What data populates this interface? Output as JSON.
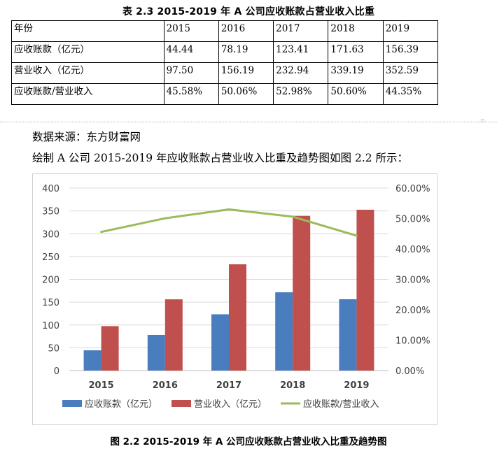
{
  "table": {
    "title": "表 2.3 2015-2019 年 A 公司应收账款占营业收入比重",
    "header": [
      "年份",
      "2015",
      "2016",
      "2017",
      "2018",
      "2019"
    ],
    "rows": [
      [
        "应收账款（亿元）",
        "44.44",
        "78.19",
        "123.41",
        "171.63",
        "156.39"
      ],
      [
        "营业收入（亿元）",
        "97.50",
        "156.19",
        "232.94",
        "339.19",
        "352.59"
      ],
      [
        "应收账款/营业收入",
        "45.58%",
        "50.06%",
        "52.98%",
        "50.60%",
        "44.35%"
      ]
    ]
  },
  "text": {
    "source": "数据来源：东方财富网",
    "description": "绘制 A 公司 2015-2019 年应收账款占营业收入比重及趋势图如图 2.2 所示：",
    "figure_caption": "图 2.2 2015-2019 年 A 公司应收账款占营业收入比重及趋势图"
  },
  "chart_data": {
    "type": "bar",
    "categories": [
      "2015",
      "2016",
      "2017",
      "2018",
      "2019"
    ],
    "series": [
      {
        "name": "应收账款（亿元）",
        "type": "bar",
        "axis": "left",
        "color": "#4a7dbe",
        "values": [
          44.44,
          78.19,
          123.41,
          171.63,
          156.39
        ]
      },
      {
        "name": "营业收入（亿元）",
        "type": "bar",
        "axis": "left",
        "color": "#c0504d",
        "values": [
          97.5,
          156.19,
          232.94,
          339.19,
          352.59
        ]
      },
      {
        "name": "应收账款/营业收入",
        "type": "line",
        "axis": "right",
        "color": "#9bbb59",
        "values": [
          45.58,
          50.06,
          52.98,
          50.6,
          44.35
        ]
      }
    ],
    "ylim": [
      0,
      400
    ],
    "y_ticks": [
      "0",
      "50",
      "100",
      "150",
      "200",
      "250",
      "300",
      "350",
      "400"
    ],
    "y2lim": [
      0,
      60
    ],
    "y2_ticks": [
      "0.00%",
      "10.00%",
      "20.00%",
      "30.00%",
      "40.00%",
      "50.00%",
      "60.00%"
    ],
    "grid": true,
    "legend_position": "bottom"
  }
}
